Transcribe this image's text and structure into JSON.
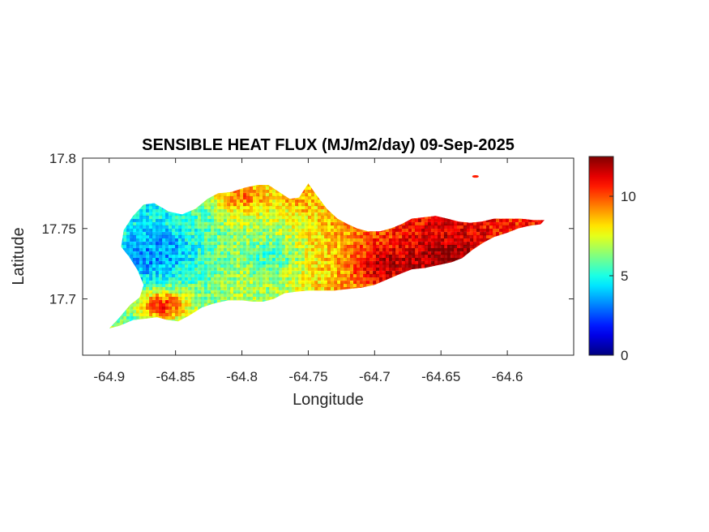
{
  "chart_data": {
    "type": "heatmap",
    "title": "SENSIBLE HEAT FLUX (MJ/m2/day) 09-Sep-2025",
    "xlabel": "Longitude",
    "ylabel": "Latitude",
    "xlim": [
      -64.92,
      -64.55
    ],
    "ylim": [
      17.66,
      17.8
    ],
    "xticks": [
      -64.9,
      -64.85,
      -64.8,
      -64.75,
      -64.7,
      -64.65,
      -64.6
    ],
    "xtick_labels": [
      "-64.9",
      "-64.85",
      "-64.8",
      "-64.75",
      "-64.7",
      "-64.65",
      "-64.6"
    ],
    "yticks": [
      17.7,
      17.75,
      17.8
    ],
    "ytick_labels": [
      "17.7",
      "17.75",
      "17.8"
    ],
    "colorbar": {
      "limits": [
        0,
        12.5
      ],
      "ticks": [
        0,
        5,
        10
      ],
      "tick_labels": [
        "0",
        "5",
        "10"
      ],
      "colormap": "jet"
    },
    "grid": false,
    "outline": [
      [
        -64.9,
        17.679
      ],
      [
        -64.893,
        17.686
      ],
      [
        -64.884,
        17.696
      ],
      [
        -64.877,
        17.701
      ],
      [
        -64.874,
        17.71
      ],
      [
        -64.879,
        17.721
      ],
      [
        -64.885,
        17.73
      ],
      [
        -64.891,
        17.737
      ],
      [
        -64.889,
        17.749
      ],
      [
        -64.882,
        17.759
      ],
      [
        -64.874,
        17.767
      ],
      [
        -64.866,
        17.768
      ],
      [
        -64.855,
        17.762
      ],
      [
        -64.845,
        17.76
      ],
      [
        -64.835,
        17.764
      ],
      [
        -64.826,
        17.771
      ],
      [
        -64.818,
        17.775
      ],
      [
        -64.808,
        17.776
      ],
      [
        -64.798,
        17.779
      ],
      [
        -64.788,
        17.781
      ],
      [
        -64.78,
        17.781
      ],
      [
        -64.772,
        17.776
      ],
      [
        -64.764,
        17.771
      ],
      [
        -64.757,
        17.772
      ],
      [
        -64.75,
        17.782
      ],
      [
        -64.744,
        17.774
      ],
      [
        -64.736,
        17.764
      ],
      [
        -64.728,
        17.757
      ],
      [
        -64.72,
        17.753
      ],
      [
        -64.713,
        17.75
      ],
      [
        -64.705,
        17.748
      ],
      [
        -64.696,
        17.748
      ],
      [
        -64.688,
        17.75
      ],
      [
        -64.68,
        17.753
      ],
      [
        -64.672,
        17.757
      ],
      [
        -64.663,
        17.758
      ],
      [
        -64.654,
        17.759
      ],
      [
        -64.645,
        17.757
      ],
      [
        -64.637,
        17.755
      ],
      [
        -64.628,
        17.754
      ],
      [
        -64.619,
        17.755
      ],
      [
        -64.61,
        17.757
      ],
      [
        -64.6,
        17.757
      ],
      [
        -64.59,
        17.757
      ],
      [
        -64.58,
        17.756
      ],
      [
        -64.572,
        17.756
      ],
      [
        -64.575,
        17.753
      ],
      [
        -64.583,
        17.752
      ],
      [
        -64.592,
        17.75
      ],
      [
        -64.6,
        17.747
      ],
      [
        -64.61,
        17.744
      ],
      [
        -64.618,
        17.74
      ],
      [
        -64.626,
        17.735
      ],
      [
        -64.634,
        17.729
      ],
      [
        -64.642,
        17.726
      ],
      [
        -64.652,
        17.724
      ],
      [
        -64.662,
        17.722
      ],
      [
        -64.672,
        17.721
      ],
      [
        -64.68,
        17.718
      ],
      [
        -64.69,
        17.714
      ],
      [
        -64.7,
        17.71
      ],
      [
        -64.71,
        17.708
      ],
      [
        -64.72,
        17.707
      ],
      [
        -64.73,
        17.706
      ],
      [
        -64.74,
        17.706
      ],
      [
        -64.75,
        17.706
      ],
      [
        -64.76,
        17.705
      ],
      [
        -64.768,
        17.704
      ],
      [
        -64.776,
        17.7
      ],
      [
        -64.784,
        17.698
      ],
      [
        -64.792,
        17.698
      ],
      [
        -64.8,
        17.699
      ],
      [
        -64.81,
        17.699
      ],
      [
        -64.82,
        17.697
      ],
      [
        -64.83,
        17.694
      ],
      [
        -64.84,
        17.688
      ],
      [
        -64.848,
        17.684
      ],
      [
        -64.856,
        17.685
      ],
      [
        -64.864,
        17.687
      ],
      [
        -64.872,
        17.686
      ],
      [
        -64.882,
        17.685
      ],
      [
        -64.892,
        17.681
      ]
    ],
    "islet": [
      -64.624,
      17.787
    ],
    "value_trend": {
      "description": "values increase from west to east",
      "gradient_longitudes": [
        -64.9,
        -64.88,
        -64.85,
        -64.82,
        -64.8,
        -64.78,
        -64.75,
        -64.72,
        -64.7,
        -64.68,
        -64.65,
        -64.62,
        -64.6,
        -64.57
      ],
      "gradient_values": [
        6.5,
        4.5,
        5.0,
        6.0,
        7.0,
        6.5,
        8.0,
        9.0,
        10.0,
        10.5,
        11.2,
        11.0,
        10.5,
        10.8
      ],
      "hotspots": [
        {
          "lon": -64.86,
          "lat": 17.695,
          "value": 10.5
        },
        {
          "lon": -64.8,
          "lat": 17.773,
          "value": 9.5
        },
        {
          "lon": -64.76,
          "lat": 17.774,
          "value": 9.0
        },
        {
          "lon": -64.65,
          "lat": 17.73,
          "value": 12.5
        },
        {
          "lon": -64.69,
          "lat": 17.725,
          "value": 11.8
        }
      ],
      "coldspots": [
        {
          "lon": -64.875,
          "lat": 17.73,
          "value": 3.0
        },
        {
          "lon": -64.86,
          "lat": 17.735,
          "value": 3.5
        },
        {
          "lon": -64.78,
          "lat": 17.73,
          "value": 5.5
        }
      ]
    }
  }
}
